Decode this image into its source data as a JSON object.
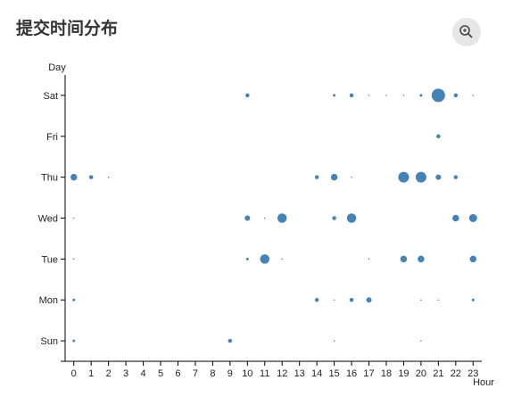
{
  "chart_data": {
    "type": "scatter",
    "title": "提交时间分布",
    "xlabel": "Hour",
    "ylabel": "Day",
    "y_categories": [
      "Sun",
      "Mon",
      "Tue",
      "Wed",
      "Thu",
      "Fri",
      "Sat"
    ],
    "xlim": [
      -0.5,
      23.5
    ],
    "xticks": [
      0,
      1,
      2,
      3,
      4,
      5,
      6,
      7,
      8,
      9,
      10,
      11,
      12,
      13,
      14,
      15,
      16,
      17,
      18,
      19,
      20,
      21,
      22,
      23
    ],
    "color": "#4682b4",
    "series": [
      {
        "name": "Sat",
        "x": [
          10,
          15,
          16,
          17,
          18,
          19,
          20,
          21,
          22,
          23
        ],
        "sizes": [
          3,
          2,
          3,
          1,
          1,
          1,
          2,
          10,
          3,
          1
        ]
      },
      {
        "name": "Fri",
        "x": [
          21
        ],
        "sizes": [
          3
        ]
      },
      {
        "name": "Thu",
        "x": [
          0,
          1,
          2,
          14,
          15,
          16,
          19,
          20,
          21,
          22
        ],
        "sizes": [
          5,
          3,
          1,
          3,
          5,
          1,
          8,
          8,
          4,
          3
        ]
      },
      {
        "name": "Wed",
        "x": [
          0,
          10,
          11,
          12,
          15,
          16,
          22,
          23
        ],
        "sizes": [
          1,
          4,
          1,
          7,
          3,
          7,
          5,
          6
        ]
      },
      {
        "name": "Tue",
        "x": [
          0,
          10,
          11,
          12,
          17,
          19,
          20,
          23
        ],
        "sizes": [
          1,
          2,
          7,
          1,
          1,
          5,
          5,
          5
        ]
      },
      {
        "name": "Mon",
        "x": [
          0,
          14,
          15,
          16,
          17,
          20,
          21,
          23
        ],
        "sizes": [
          2,
          3,
          1,
          3,
          4,
          1,
          1,
          2
        ]
      },
      {
        "name": "Sun",
        "x": [
          0,
          9,
          15,
          20
        ],
        "sizes": [
          2,
          3,
          1,
          1
        ]
      }
    ]
  }
}
